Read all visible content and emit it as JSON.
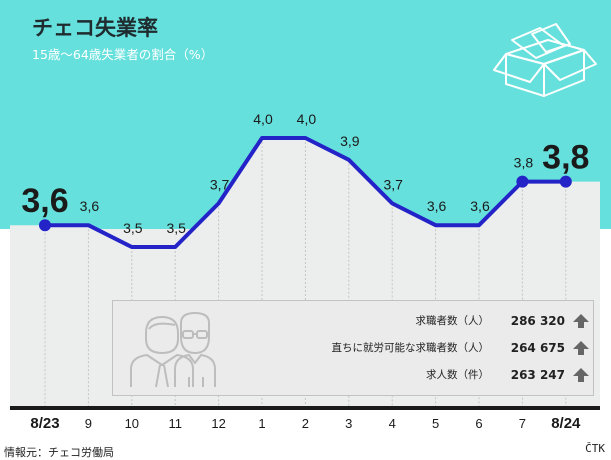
{
  "header": {
    "title": "チェコ失業率",
    "subtitle": "15歳〜64歳失業者の割合（%）"
  },
  "chart_data": {
    "type": "line",
    "categories": [
      "8/23",
      "9",
      "10",
      "11",
      "12",
      "1",
      "2",
      "3",
      "4",
      "5",
      "6",
      "7",
      "8/24"
    ],
    "values": [
      3.6,
      3.6,
      3.5,
      3.5,
      3.7,
      4.0,
      4.0,
      3.9,
      3.7,
      3.6,
      3.6,
      3.8,
      3.8
    ],
    "value_labels": [
      "3,6",
      "3,6",
      "3,5",
      "3,5",
      "3,7",
      "4,0",
      "4,0",
      "3,9",
      "3,7",
      "3,6",
      "3,6",
      "3,8",
      "3,8"
    ],
    "ylim": [
      3.3,
      4.05
    ],
    "grid": "vertical",
    "highlighted_points": [
      "8/23",
      "7",
      "8/24"
    ],
    "line_color": "#2323c8",
    "header_color": "#66e0dc",
    "plot_color": "#eceeee"
  },
  "info_box": {
    "rows": [
      {
        "label": "求職者数（人）",
        "value": "286 320",
        "trend": "up"
      },
      {
        "label": "直ちに就労可能な求職者数（人）",
        "value": "264 675",
        "trend": "up"
      },
      {
        "label": "求人数（件）",
        "value": "263 247",
        "trend": "up"
      }
    ],
    "arrow_color": "#666666",
    "illustration_icon": "job-seekers-icon"
  },
  "header_illustration_icon": "open-box-icon",
  "footer": {
    "source": "情報元：チェコ労働局",
    "agency": "ČTK"
  }
}
